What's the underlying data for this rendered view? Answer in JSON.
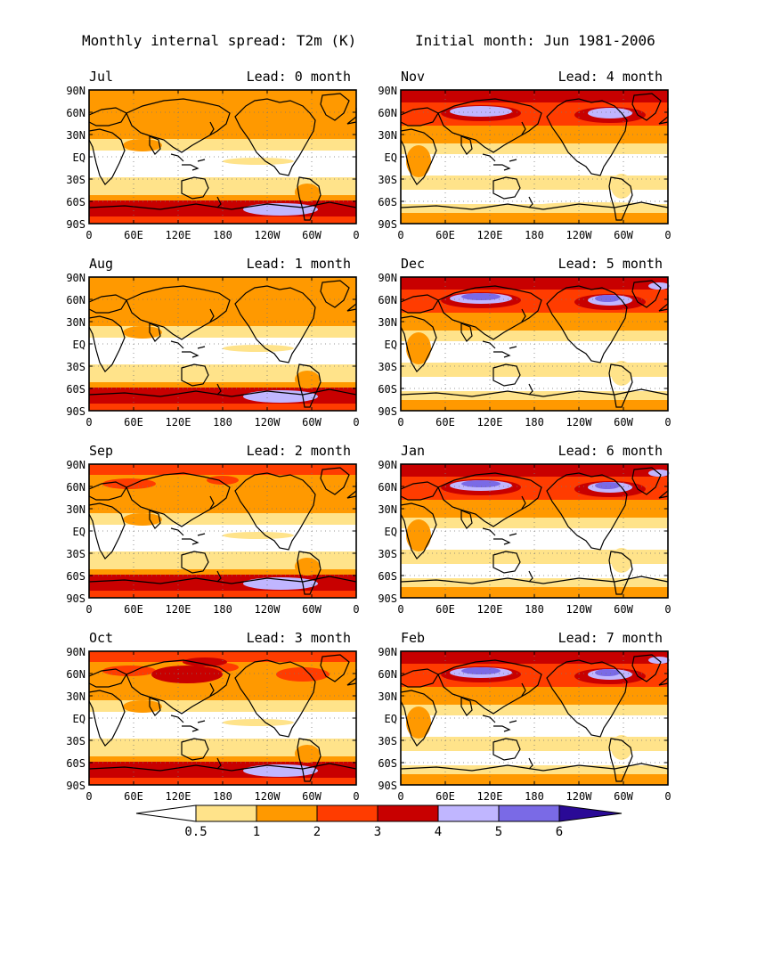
{
  "title_left": "Monthly internal spread: T2m (K)",
  "title_right": "Initial month: Jun 1981-2006",
  "lat_labels": [
    "90N",
    "60N",
    "30N",
    "EQ",
    "30S",
    "60S",
    "90S"
  ],
  "lon_labels": [
    "0",
    "60E",
    "120E",
    "180",
    "120W",
    "60W",
    "0"
  ],
  "panels": [
    {
      "month": "Jul",
      "lead": "Lead: 0 month",
      "lead_months": 0
    },
    {
      "month": "Nov",
      "lead": "Lead: 4 month",
      "lead_months": 4
    },
    {
      "month": "Aug",
      "lead": "Lead: 1 month",
      "lead_months": 1
    },
    {
      "month": "Dec",
      "lead": "Lead: 5 month",
      "lead_months": 5
    },
    {
      "month": "Sep",
      "lead": "Lead: 2 month",
      "lead_months": 2
    },
    {
      "month": "Jan",
      "lead": "Lead: 6 month",
      "lead_months": 6
    },
    {
      "month": "Oct",
      "lead": "Lead: 3 month",
      "lead_months": 3
    },
    {
      "month": "Feb",
      "lead": "Lead: 7 month",
      "lead_months": 7
    }
  ],
  "colorbar": {
    "labels": [
      "0.5",
      "1",
      "2",
      "3",
      "4",
      "5",
      "6"
    ],
    "colors": [
      "#ffffff",
      "#ffe38a",
      "#ff9900",
      "#ff3c00",
      "#c80000",
      "#c0b6ff",
      "#7a6ae6",
      "#2a0a96"
    ],
    "unit": "K"
  },
  "colors": {
    "white": "#ffffff",
    "light": "#ffe38a",
    "orange": "#ff9900",
    "redorange": "#ff3c00",
    "darkred": "#c80000",
    "lavender": "#c0b6ff",
    "purple": "#7a6ae6",
    "navy": "#2a0a96",
    "continent": "#000000",
    "grid": "#777777"
  }
}
